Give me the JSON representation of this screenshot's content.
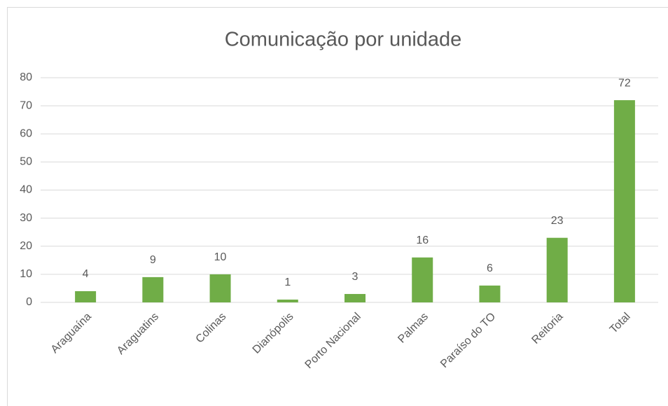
{
  "chart_data": {
    "type": "bar",
    "title": "Comunicação por unidade",
    "categories": [
      "Araguaína",
      "Araguatins",
      "Colinas",
      "Dianópolis",
      "Porto Nacional",
      "Palmas",
      "Paraíso do TO",
      "Reitoria",
      "Total"
    ],
    "values": [
      4,
      9,
      10,
      1,
      3,
      16,
      6,
      23,
      72
    ],
    "color": "#70ad47",
    "ylim": [
      0,
      80
    ],
    "yticks": [
      0,
      10,
      20,
      30,
      40,
      50,
      60,
      70,
      80
    ],
    "grid": true
  }
}
